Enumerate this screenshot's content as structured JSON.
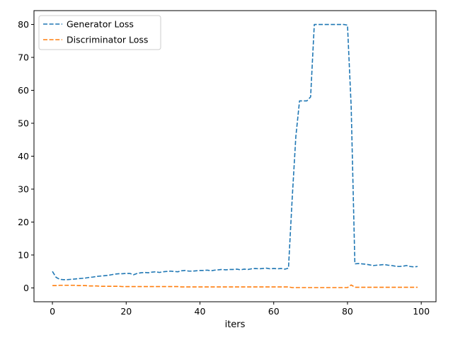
{
  "chart_data": {
    "type": "line",
    "title": "",
    "xlabel": "iters",
    "ylabel": "",
    "xlim": [
      -5,
      104
    ],
    "ylim": [
      -4.2,
      84.2
    ],
    "xticks": [
      0,
      20,
      40,
      60,
      80,
      100
    ],
    "yticks": [
      0,
      10,
      20,
      30,
      40,
      50,
      60,
      70,
      80
    ],
    "grid": false,
    "legend_position": "top-left",
    "series": [
      {
        "name": "Generator Loss",
        "color": "#1f77b4",
        "dash": "dashed",
        "x": [
          0,
          1,
          2,
          3,
          4,
          5,
          6,
          7,
          8,
          9,
          10,
          11,
          12,
          13,
          14,
          15,
          16,
          17,
          18,
          19,
          20,
          21,
          22,
          23,
          24,
          25,
          26,
          27,
          28,
          29,
          30,
          31,
          32,
          33,
          34,
          35,
          36,
          37,
          38,
          39,
          40,
          41,
          42,
          43,
          44,
          45,
          46,
          47,
          48,
          49,
          50,
          51,
          52,
          53,
          54,
          55,
          56,
          57,
          58,
          59,
          60,
          61,
          62,
          63,
          64,
          65,
          66,
          67,
          68,
          69,
          70,
          71,
          72,
          73,
          74,
          75,
          76,
          77,
          78,
          79,
          80,
          81,
          82,
          83,
          84,
          85,
          86,
          87,
          88,
          89,
          90,
          91,
          92,
          93,
          94,
          95,
          96,
          97,
          98,
          99
        ],
        "values": [
          5.0,
          3.2,
          2.6,
          2.5,
          2.5,
          2.6,
          2.7,
          2.8,
          2.9,
          3.0,
          3.2,
          3.3,
          3.5,
          3.6,
          3.7,
          3.8,
          4.0,
          4.2,
          4.3,
          4.3,
          4.4,
          4.4,
          4.0,
          4.4,
          4.6,
          4.7,
          4.6,
          4.8,
          4.9,
          4.7,
          4.9,
          5.0,
          5.1,
          5.0,
          4.9,
          5.2,
          5.3,
          5.1,
          5.1,
          5.2,
          5.3,
          5.3,
          5.4,
          5.2,
          5.4,
          5.5,
          5.6,
          5.5,
          5.6,
          5.6,
          5.7,
          5.5,
          5.7,
          5.6,
          5.8,
          5.9,
          5.8,
          5.9,
          6.0,
          5.8,
          5.9,
          5.8,
          5.9,
          5.7,
          6.0,
          27.0,
          46.0,
          56.8,
          56.8,
          56.8,
          58.0,
          80.0,
          80.0,
          80.0,
          80.0,
          80.0,
          80.0,
          80.0,
          80.0,
          80.0,
          79.8,
          55.0,
          7.3,
          7.4,
          7.3,
          7.2,
          7.0,
          6.8,
          6.9,
          7.0,
          7.1,
          6.9,
          6.8,
          6.6,
          6.5,
          6.6,
          6.8,
          6.5,
          6.4,
          6.5
        ]
      },
      {
        "name": "Discriminator Loss",
        "color": "#ff7f0e",
        "dash": "dashed",
        "x": [
          0,
          1,
          2,
          3,
          4,
          5,
          6,
          7,
          8,
          9,
          10,
          11,
          12,
          13,
          14,
          15,
          16,
          17,
          18,
          19,
          20,
          21,
          22,
          23,
          24,
          25,
          26,
          27,
          28,
          29,
          30,
          31,
          32,
          33,
          34,
          35,
          36,
          37,
          38,
          39,
          40,
          41,
          42,
          43,
          44,
          45,
          46,
          47,
          48,
          49,
          50,
          51,
          52,
          53,
          54,
          55,
          56,
          57,
          58,
          59,
          60,
          61,
          62,
          63,
          64,
          65,
          66,
          67,
          68,
          69,
          70,
          71,
          72,
          73,
          74,
          75,
          76,
          77,
          78,
          79,
          80,
          81,
          82,
          83,
          84,
          85,
          86,
          87,
          88,
          89,
          90,
          91,
          92,
          93,
          94,
          95,
          96,
          97,
          98,
          99
        ],
        "values": [
          0.7,
          0.7,
          0.8,
          0.8,
          0.8,
          0.8,
          0.8,
          0.7,
          0.7,
          0.7,
          0.6,
          0.6,
          0.6,
          0.5,
          0.5,
          0.5,
          0.5,
          0.5,
          0.5,
          0.4,
          0.4,
          0.4,
          0.4,
          0.4,
          0.4,
          0.4,
          0.4,
          0.4,
          0.4,
          0.4,
          0.4,
          0.4,
          0.4,
          0.4,
          0.4,
          0.3,
          0.3,
          0.3,
          0.3,
          0.3,
          0.3,
          0.3,
          0.3,
          0.3,
          0.3,
          0.3,
          0.3,
          0.3,
          0.3,
          0.3,
          0.3,
          0.3,
          0.3,
          0.3,
          0.3,
          0.3,
          0.3,
          0.3,
          0.3,
          0.3,
          0.3,
          0.3,
          0.3,
          0.3,
          0.3,
          0.1,
          0.1,
          0.1,
          0.1,
          0.1,
          0.1,
          0.1,
          0.1,
          0.1,
          0.1,
          0.1,
          0.1,
          0.1,
          0.1,
          0.1,
          0.1,
          0.9,
          0.2,
          0.2,
          0.2,
          0.2,
          0.2,
          0.2,
          0.2,
          0.2,
          0.2,
          0.2,
          0.2,
          0.2,
          0.2,
          0.2,
          0.2,
          0.2,
          0.2,
          0.2
        ]
      }
    ]
  }
}
